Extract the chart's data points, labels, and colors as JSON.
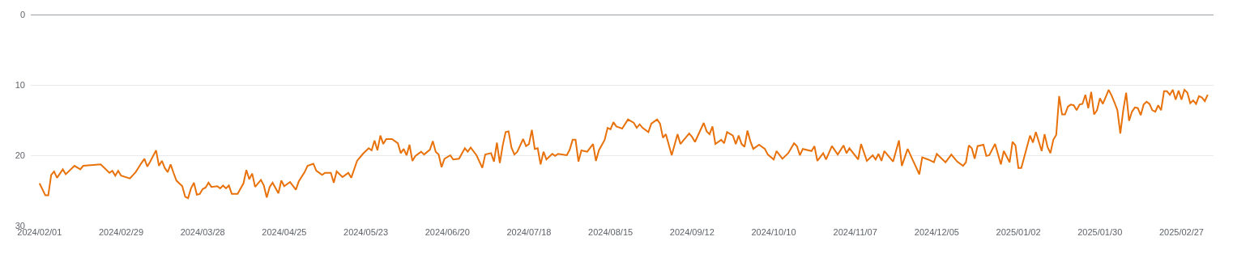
{
  "chart_data": {
    "type": "line",
    "grid": "y",
    "ylim": [
      30,
      0
    ],
    "yticks": [
      0,
      10,
      20,
      30
    ],
    "xlim": [
      "2024-01-29",
      "2025-03-10"
    ],
    "xticks": [
      {
        "value": "2024-02-01",
        "label": "2024/02/01"
      },
      {
        "value": "2024-02-29",
        "label": "2024/02/29"
      },
      {
        "value": "2024-03-28",
        "label": "2024/03/28"
      },
      {
        "value": "2024-04-25",
        "label": "2024/04/25"
      },
      {
        "value": "2024-05-23",
        "label": "2024/05/23"
      },
      {
        "value": "2024-06-20",
        "label": "2024/06/20"
      },
      {
        "value": "2024-07-18",
        "label": "2024/07/18"
      },
      {
        "value": "2024-08-15",
        "label": "2024/08/15"
      },
      {
        "value": "2024-09-12",
        "label": "2024/09/12"
      },
      {
        "value": "2024-10-10",
        "label": "2024/10/10"
      },
      {
        "value": "2024-11-07",
        "label": "2024/11/07"
      },
      {
        "value": "2024-12-05",
        "label": "2024/12/05"
      },
      {
        "value": "2025-01-02",
        "label": "2025/01/02"
      },
      {
        "value": "2025-01-30",
        "label": "2025/01/30"
      },
      {
        "value": "2025-02-27",
        "label": "2025/02/27"
      }
    ],
    "marker": "none",
    "line_style": "solid",
    "series": [
      {
        "color": "#e8710a",
        "x": [
          "2024-02-01",
          "2024-02-03",
          "2024-02-04",
          "2024-02-05",
          "2024-02-06",
          "2024-02-07",
          "2024-02-09",
          "2024-02-10",
          "2024-02-13",
          "2024-02-15",
          "2024-02-16",
          "2024-02-22",
          "2024-02-25",
          "2024-02-26",
          "2024-02-27",
          "2024-02-28",
          "2024-02-29",
          "2024-03-03",
          "2024-03-05",
          "2024-03-07",
          "2024-03-08",
          "2024-03-09",
          "2024-03-10",
          "2024-03-12",
          "2024-03-13",
          "2024-03-14",
          "2024-03-15",
          "2024-03-16",
          "2024-03-17",
          "2024-03-18",
          "2024-03-19",
          "2024-03-21",
          "2024-03-22",
          "2024-03-23",
          "2024-03-24",
          "2024-03-25",
          "2024-03-26",
          "2024-03-27",
          "2024-03-28",
          "2024-03-29",
          "2024-03-30",
          "2024-03-31",
          "2024-04-02",
          "2024-04-03",
          "2024-04-04",
          "2024-04-05",
          "2024-04-06",
          "2024-04-07",
          "2024-04-09",
          "2024-04-11",
          "2024-04-12",
          "2024-04-13",
          "2024-04-14",
          "2024-04-15",
          "2024-04-17",
          "2024-04-18",
          "2024-04-19",
          "2024-04-20",
          "2024-04-21",
          "2024-04-23",
          "2024-04-24",
          "2024-04-25",
          "2024-04-27",
          "2024-04-29",
          "2024-04-30",
          "2024-05-02",
          "2024-05-03",
          "2024-05-05",
          "2024-05-06",
          "2024-05-08",
          "2024-05-09",
          "2024-05-11",
          "2024-05-12",
          "2024-05-13",
          "2024-05-15",
          "2024-05-16",
          "2024-05-17",
          "2024-05-18",
          "2024-05-20",
          "2024-05-22",
          "2024-05-24",
          "2024-05-25",
          "2024-05-26",
          "2024-05-27",
          "2024-05-28",
          "2024-05-29",
          "2024-05-30",
          "2024-06-01",
          "2024-06-03",
          "2024-06-04",
          "2024-06-05",
          "2024-06-06",
          "2024-06-07",
          "2024-06-08",
          "2024-06-09",
          "2024-06-11",
          "2024-06-12",
          "2024-06-14",
          "2024-06-15",
          "2024-06-16",
          "2024-06-17",
          "2024-06-18",
          "2024-06-19",
          "2024-06-21",
          "2024-06-22",
          "2024-06-24",
          "2024-06-26",
          "2024-06-27",
          "2024-06-28",
          "2024-06-30",
          "2024-07-02",
          "2024-07-03",
          "2024-07-05",
          "2024-07-06",
          "2024-07-07",
          "2024-07-08",
          "2024-07-09",
          "2024-07-10",
          "2024-07-11",
          "2024-07-12",
          "2024-07-13",
          "2024-07-14",
          "2024-07-16",
          "2024-07-17",
          "2024-07-18",
          "2024-07-19",
          "2024-07-20",
          "2024-07-21",
          "2024-07-22",
          "2024-07-23",
          "2024-07-24",
          "2024-07-26",
          "2024-07-27",
          "2024-07-28",
          "2024-07-31",
          "2024-08-01",
          "2024-08-02",
          "2024-08-03",
          "2024-08-04",
          "2024-08-05",
          "2024-08-07",
          "2024-08-09",
          "2024-08-10",
          "2024-08-11",
          "2024-08-13",
          "2024-08-14",
          "2024-08-15",
          "2024-08-16",
          "2024-08-17",
          "2024-08-19",
          "2024-08-21",
          "2024-08-23",
          "2024-08-24",
          "2024-08-25",
          "2024-08-26",
          "2024-08-28",
          "2024-08-29",
          "2024-08-31",
          "2024-09-01",
          "2024-09-02",
          "2024-09-03",
          "2024-09-05",
          "2024-09-07",
          "2024-09-08",
          "2024-09-09",
          "2024-09-11",
          "2024-09-12",
          "2024-09-13",
          "2024-09-16",
          "2024-09-17",
          "2024-09-18",
          "2024-09-19",
          "2024-09-20",
          "2024-09-22",
          "2024-09-23",
          "2024-09-24",
          "2024-09-26",
          "2024-09-27",
          "2024-09-28",
          "2024-09-29",
          "2024-09-30",
          "2024-10-01",
          "2024-10-02",
          "2024-10-03",
          "2024-10-05",
          "2024-10-07",
          "2024-10-08",
          "2024-10-10",
          "2024-10-11",
          "2024-10-13",
          "2024-10-15",
          "2024-10-17",
          "2024-10-18",
          "2024-10-19",
          "2024-10-20",
          "2024-10-23",
          "2024-10-24",
          "2024-10-25",
          "2024-10-27",
          "2024-10-28",
          "2024-10-30",
          "2024-11-01",
          "2024-11-03",
          "2024-11-04",
          "2024-11-05",
          "2024-11-08",
          "2024-11-09",
          "2024-11-11",
          "2024-11-13",
          "2024-11-14",
          "2024-11-15",
          "2024-11-16",
          "2024-11-17",
          "2024-11-20",
          "2024-11-22",
          "2024-11-23",
          "2024-11-25",
          "2024-11-27",
          "2024-11-29",
          "2024-11-30",
          "2024-12-02",
          "2024-12-04",
          "2024-12-05",
          "2024-12-08",
          "2024-12-10",
          "2024-12-12",
          "2024-12-14",
          "2024-12-15",
          "2024-12-16",
          "2024-12-17",
          "2024-12-18",
          "2024-12-19",
          "2024-12-21",
          "2024-12-22",
          "2024-12-23",
          "2024-12-25",
          "2024-12-27",
          "2024-12-28",
          "2024-12-30",
          "2024-12-31",
          "2025-01-01",
          "2025-01-02",
          "2025-01-03",
          "2025-01-06",
          "2025-01-07",
          "2025-01-08",
          "2025-01-10",
          "2025-01-11",
          "2025-01-12",
          "2025-01-13",
          "2025-01-14",
          "2025-01-15",
          "2025-01-16",
          "2025-01-17",
          "2025-01-18",
          "2025-01-19",
          "2025-01-20",
          "2025-01-21",
          "2025-01-22",
          "2025-01-23",
          "2025-01-24",
          "2025-01-25",
          "2025-01-26",
          "2025-01-27",
          "2025-01-28",
          "2025-01-29",
          "2025-01-30",
          "2025-01-31",
          "2025-02-01",
          "2025-02-02",
          "2025-02-03",
          "2025-02-04",
          "2025-02-05",
          "2025-02-06",
          "2025-02-07",
          "2025-02-08",
          "2025-02-09",
          "2025-02-10",
          "2025-02-11",
          "2025-02-12",
          "2025-02-13",
          "2025-02-14",
          "2025-02-15",
          "2025-02-16",
          "2025-02-17",
          "2025-02-18",
          "2025-02-19",
          "2025-02-20",
          "2025-02-21",
          "2025-02-22",
          "2025-02-23",
          "2025-02-24",
          "2025-02-25",
          "2025-02-26",
          "2025-02-27",
          "2025-02-28",
          "2025-03-01",
          "2025-03-02",
          "2025-03-03",
          "2025-03-04",
          "2025-03-05",
          "2025-03-06",
          "2025-03-07",
          "2025-03-08"
        ],
        "values": [
          24.0,
          25.7,
          25.7,
          22.8,
          22.3,
          23.2,
          22.0,
          22.7,
          21.5,
          22.0,
          21.5,
          21.3,
          22.5,
          22.2,
          22.9,
          22.2,
          22.9,
          23.3,
          22.4,
          21.1,
          20.5,
          21.6,
          20.9,
          19.3,
          21.5,
          20.8,
          21.8,
          22.4,
          21.3,
          22.5,
          23.6,
          24.4,
          25.9,
          26.1,
          24.7,
          23.9,
          25.6,
          25.5,
          24.8,
          24.6,
          23.9,
          24.5,
          24.4,
          24.7,
          24.3,
          24.7,
          24.3,
          25.5,
          25.5,
          24.0,
          22.1,
          23.4,
          22.6,
          24.5,
          23.5,
          24.3,
          26.0,
          24.5,
          23.9,
          25.4,
          23.6,
          24.4,
          23.8,
          24.9,
          23.7,
          22.4,
          21.5,
          21.2,
          22.2,
          22.8,
          22.5,
          22.5,
          23.9,
          22.3,
          23.1,
          22.8,
          22.5,
          23.2,
          20.8,
          19.8,
          19.0,
          19.3,
          17.9,
          19.3,
          17.2,
          18.4,
          17.7,
          17.7,
          18.3,
          19.7,
          19.1,
          20.0,
          18.5,
          20.8,
          20.1,
          19.5,
          19.9,
          19.2,
          18.0,
          19.5,
          19.9,
          21.7,
          20.5,
          20.0,
          20.6,
          20.5,
          19.0,
          19.5,
          18.9,
          20.0,
          21.8,
          19.9,
          19.7,
          20.9,
          18.2,
          21.1,
          18.6,
          16.7,
          16.6,
          18.9,
          19.9,
          19.5,
          17.7,
          18.7,
          18.4,
          16.4,
          19.1,
          19.0,
          21.3,
          19.5,
          20.6,
          19.8,
          20.1,
          19.8,
          20.0,
          19.2,
          17.8,
          17.8,
          20.9,
          19.3,
          19.5,
          18.4,
          20.8,
          19.3,
          17.8,
          16.1,
          16.3,
          15.3,
          15.9,
          16.2,
          14.9,
          15.4,
          16.1,
          15.6,
          16.1,
          16.7,
          15.5,
          14.9,
          15.5,
          17.5,
          17.0,
          20.0,
          17.0,
          18.4,
          17.9,
          16.9,
          17.4,
          18.1,
          15.4,
          16.6,
          17.0,
          15.9,
          18.4,
          17.8,
          18.3,
          16.7,
          17.2,
          18.4,
          17.2,
          18.4,
          18.8,
          16.5,
          18.0,
          19.1,
          18.5,
          19.1,
          19.9,
          20.6,
          19.4,
          20.5,
          19.7,
          18.3,
          18.7,
          20.0,
          19.1,
          19.4,
          18.7,
          20.8,
          19.7,
          20.6,
          18.7,
          19.9,
          18.6,
          19.7,
          19.0,
          20.6,
          18.4,
          20.8,
          20.0,
          20.6,
          19.8,
          20.8,
          19.4,
          20.9,
          17.9,
          21.5,
          19.1,
          20.9,
          22.7,
          20.3,
          20.6,
          21.0,
          19.8,
          21.0,
          19.9,
          20.9,
          21.5,
          21.0,
          18.6,
          19.0,
          20.5,
          18.7,
          18.5,
          20.1,
          20.0,
          18.4,
          21.3,
          19.4,
          21.0,
          18.1,
          18.6,
          21.8,
          21.8,
          17.2,
          18.2,
          16.7,
          19.4,
          17.0,
          18.8,
          19.7,
          17.8,
          17.1,
          11.6,
          14.2,
          14.2,
          13.1,
          12.8,
          12.9,
          13.6,
          12.8,
          12.7,
          11.4,
          13.3,
          11.0,
          14.2,
          13.6,
          11.9,
          12.7,
          11.7,
          10.7,
          11.5,
          12.5,
          13.6,
          16.9,
          13.6,
          11.1,
          15.1,
          13.8,
          13.2,
          13.3,
          14.3,
          12.8,
          12.4,
          12.7,
          13.6,
          13.8,
          12.9,
          13.6,
          10.9,
          10.9,
          11.4,
          10.7,
          12.1,
          10.8,
          12.1,
          10.7,
          11.1,
          12.6,
          12.2,
          12.7,
          11.6,
          11.8,
          12.3,
          11.4
        ]
      }
    ]
  }
}
